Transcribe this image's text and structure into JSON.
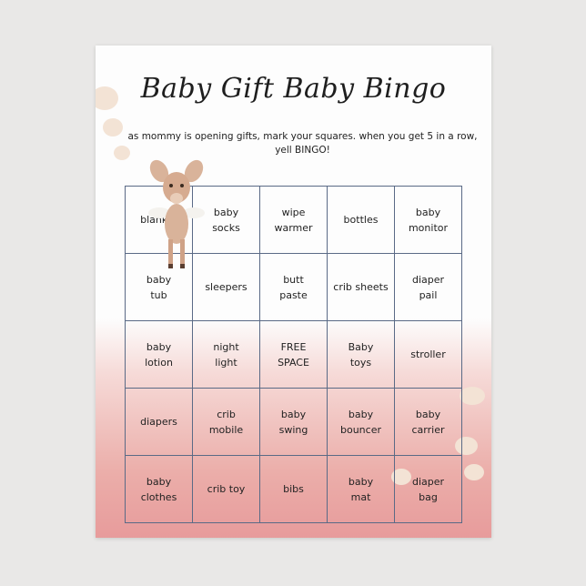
{
  "title": "Baby Gift Baby Bingo",
  "instructions": "as mommy is opening gifts, mark your squares. when you get 5 in a row, yell BINGO!",
  "grid": [
    [
      "blanket",
      "baby\nsocks",
      "wipe\nwarmer",
      "bottles",
      "baby\nmonitor"
    ],
    [
      "baby\ntub",
      "sleepers",
      "butt\npaste",
      "crib sheets",
      "diaper\npail"
    ],
    [
      "baby\nlotion",
      "night\nlight",
      "FREE\nSPACE",
      "Baby\ntoys",
      "stroller"
    ],
    [
      "diapers",
      "crib\nmobile",
      "baby\nswing",
      "baby\nbouncer",
      "baby\ncarrier"
    ],
    [
      "baby\nclothes",
      "crib toy",
      "bibs",
      "baby\nmat",
      "diaper\nbag"
    ]
  ],
  "colors": {
    "grid_line": "#5a6a86",
    "glitter": "#e8a09b",
    "background": "#e9e8e7"
  },
  "icons": {
    "illustration": "fawn-deer-illustration"
  }
}
